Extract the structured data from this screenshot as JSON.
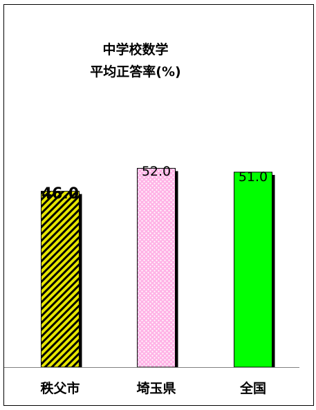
{
  "chart_data": {
    "type": "bar",
    "title": [
      "中学校数学",
      "平均正答率(%)"
    ],
    "categories": [
      "秩父市",
      "埼玉県",
      "全国"
    ],
    "values": [
      46.0,
      52.0,
      51.0
    ],
    "value_labels": [
      "46.0",
      "52.0",
      "51.0"
    ],
    "xlabel": "",
    "ylabel": "",
    "ylim": [
      0,
      100
    ],
    "grid": false,
    "legend": "none",
    "colors": {
      "bar_1": "#e6e600",
      "bar_1_stripe": "#000000",
      "bar_2": "#ffb3e6",
      "bar_2_dots": "#ffffff",
      "bar_3": "#00ff00",
      "shadow": "#000000",
      "axis": "#808080",
      "frame": "#000000"
    }
  }
}
